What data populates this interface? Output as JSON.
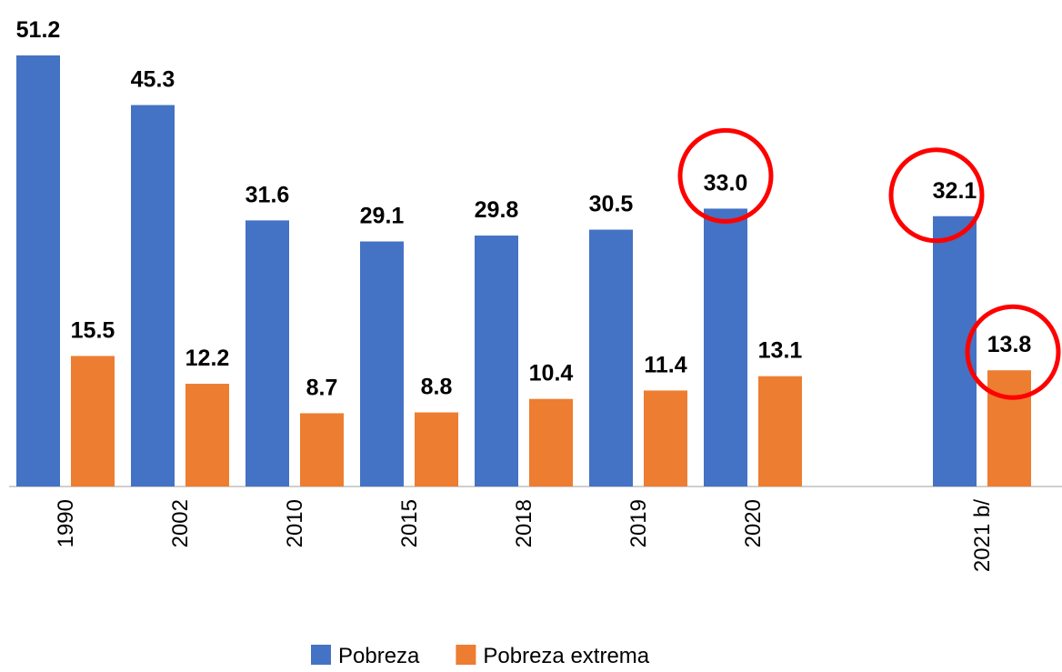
{
  "chart_data": {
    "type": "bar",
    "categories": [
      "1990",
      "2002",
      "2010",
      "2015",
      "2018",
      "2019",
      "2020",
      null,
      "2021 b/"
    ],
    "series": [
      {
        "name": "Pobreza",
        "color": "#4472c4",
        "values": [
          51.2,
          45.3,
          31.6,
          29.1,
          29.8,
          30.5,
          33.0,
          null,
          32.1
        ],
        "value_labels": [
          "51.2",
          "45.3",
          "31.6",
          "29.1",
          "29.8",
          "30.5",
          "33.0",
          null,
          "32.1"
        ]
      },
      {
        "name": "Pobreza extrema",
        "color": "#ed7d31",
        "values": [
          15.5,
          12.2,
          8.7,
          8.8,
          10.4,
          11.4,
          13.1,
          null,
          13.8
        ],
        "value_labels": [
          "15.5",
          "12.2",
          "8.7",
          "8.8",
          "10.4",
          "11.4",
          "13.1",
          null,
          "13.8"
        ]
      }
    ],
    "legend": "bottom"
  }
}
